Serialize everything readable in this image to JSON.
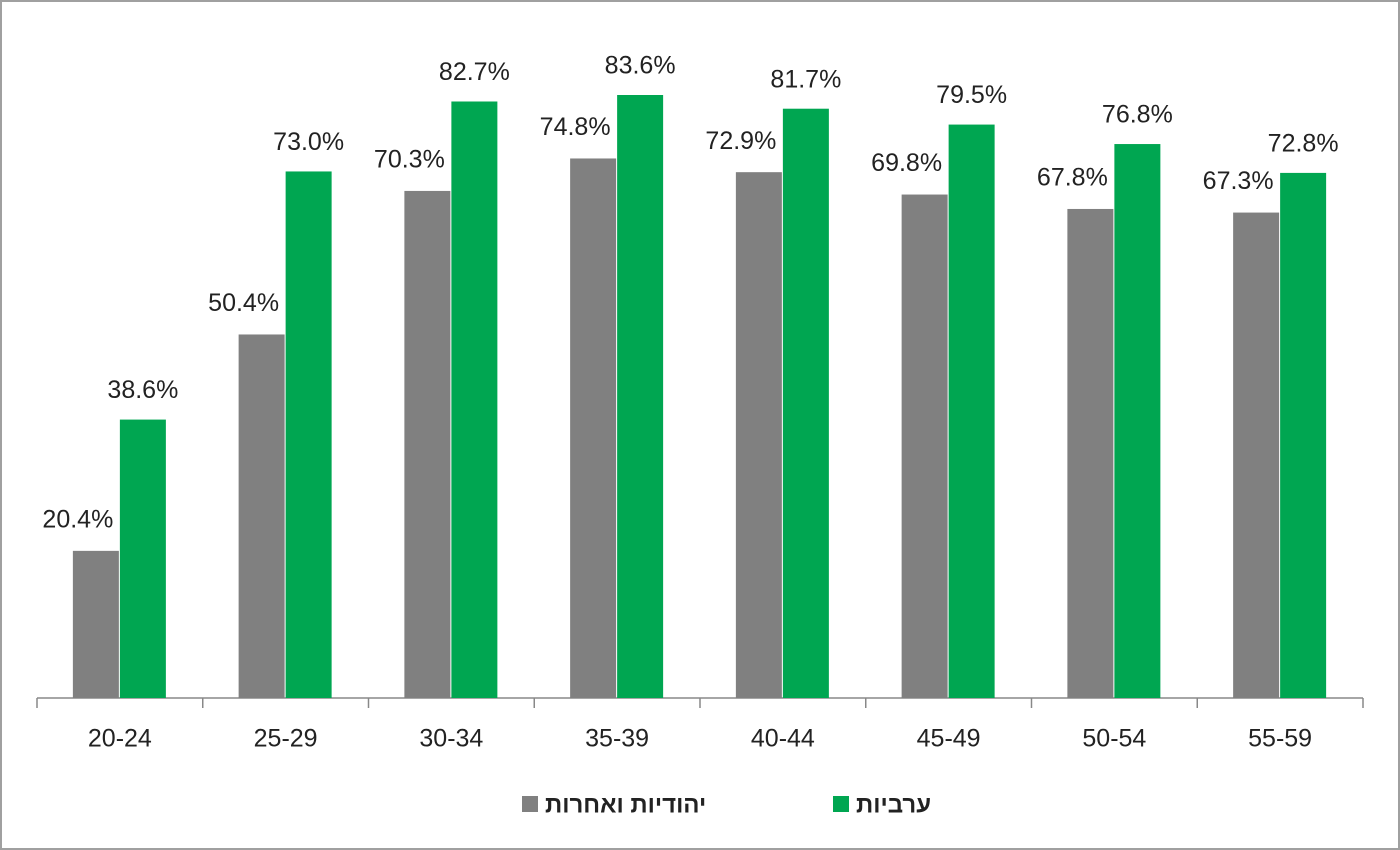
{
  "chart_data": {
    "type": "bar",
    "categories": [
      "20-24",
      "25-29",
      "30-34",
      "35-39",
      "40-44",
      "45-49",
      "50-54",
      "55-59"
    ],
    "series": [
      {
        "name": "יהודיות ואחרות",
        "color": "#808080",
        "values": [
          20.4,
          50.4,
          70.3,
          74.8,
          72.9,
          69.8,
          67.8,
          67.3
        ],
        "value_labels": [
          "20.4%",
          "50.4%",
          "70.3%",
          "74.8%",
          "72.9%",
          "69.8%",
          "67.8%",
          "67.3%"
        ]
      },
      {
        "name": "ערביות",
        "color": "#00a651",
        "values": [
          38.6,
          73.0,
          82.7,
          83.6,
          81.7,
          79.5,
          76.8,
          72.8
        ],
        "value_labels": [
          "38.6%",
          "73.0%",
          "82.7%",
          "83.6%",
          "81.7%",
          "79.5%",
          "76.8%",
          "72.8%"
        ]
      }
    ]
  }
}
